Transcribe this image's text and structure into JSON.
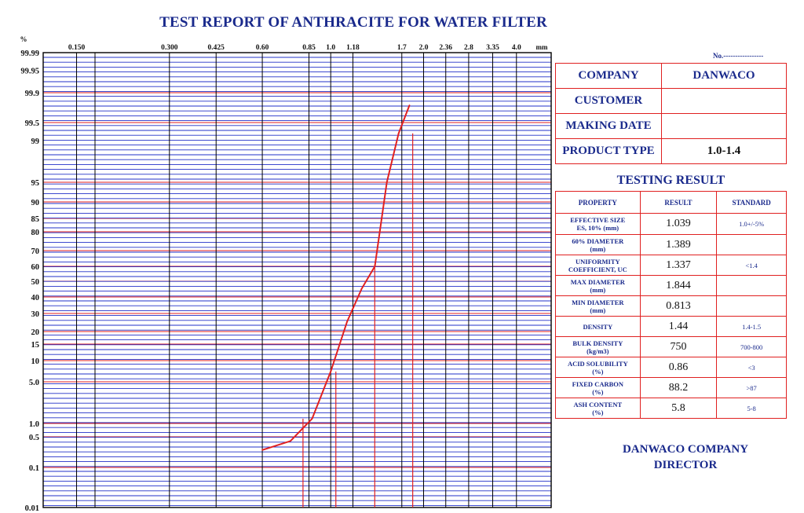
{
  "title": "TEST REPORT OF ANTHRACITE FOR WATER FILTER",
  "report_no": "No.-----------------",
  "chart_data": {
    "type": "line",
    "title": "TEST REPORT OF ANTHRACITE FOR WATER FILTER",
    "x_unit": "mm",
    "y_unit": "%",
    "x_scale": "log",
    "y_scale": "probability",
    "x_tick_labels": [
      "0.150",
      "0.300",
      "0.425",
      "0.60",
      "0.85",
      "1.0",
      "1.18",
      "1.7",
      "2.0",
      "2.36",
      "2.8",
      "3.35",
      "4.0"
    ],
    "y_tick_labels": [
      "99.99",
      "99.95",
      "99.9",
      "99.5",
      "99",
      "95",
      "90",
      "85",
      "80",
      "70",
      "60",
      "50",
      "40",
      "30",
      "20",
      "15",
      "10",
      "5.0",
      "1.0",
      "0.5",
      "0.1",
      "0.01"
    ],
    "series": [
      {
        "x": [
          0.6,
          0.74,
          0.87,
          1.0,
          1.13,
          1.26,
          1.39,
          1.52,
          1.66,
          1.8
        ],
        "y": [
          0.25,
          0.4,
          1.2,
          7,
          25,
          45,
          60,
          95,
          99.2,
          99.8
        ]
      }
    ],
    "reference_lines": [
      {
        "x": 0.813,
        "y": 1.2
      },
      {
        "x": 1.039,
        "y": 7
      },
      {
        "x": 1.389,
        "y": 60
      },
      {
        "x": 1.844,
        "y": 99.2
      }
    ]
  },
  "info": {
    "rows": [
      {
        "label": "COMPANY",
        "value": "DANWACO"
      },
      {
        "label": "CUSTOMER",
        "value": ""
      },
      {
        "label": "MAKING DATE",
        "value": ""
      },
      {
        "label": "PRODUCT TYPE",
        "value": "1.0-1.4"
      }
    ]
  },
  "testing": {
    "title": "TESTING RESULT",
    "headers": [
      "PROPERTY",
      "RESULT",
      "STANDARD"
    ],
    "rows": [
      {
        "p1": "EFFECTIVE SIZE",
        "p2": "ES, 10% (mm)",
        "result": "1.039",
        "standard": "1.0+/-5%"
      },
      {
        "p1": "60% DIAMETER",
        "p2": "(mm)",
        "result": "1.389",
        "standard": ""
      },
      {
        "p1": "UNIFORMITY",
        "p2": "COEFFICIENT, UC",
        "result": "1.337",
        "standard": "<1.4"
      },
      {
        "p1": "MAX DIAMETER",
        "p2": "(mm)",
        "result": "1.844",
        "standard": ""
      },
      {
        "p1": "MIN DIAMETER",
        "p2": "(mm)",
        "result": "0.813",
        "standard": ""
      },
      {
        "p1": "DENSITY",
        "p2": "",
        "result": "1.44",
        "standard": "1.4-1.5"
      },
      {
        "p1": "BULK DENSITY",
        "p2": "(kg/m3)",
        "result": "750",
        "standard": "700-800"
      },
      {
        "p1": "ACID SOLUBILITY",
        "p2": "(%)",
        "result": "0.86",
        "standard": "<3"
      },
      {
        "p1": "FIXED CARBON",
        "p2": "(%)",
        "result": "88.2",
        "standard": ">87"
      },
      {
        "p1": "ASH CONTENT",
        "p2": "(%)",
        "result": "5.8",
        "standard": "5-8"
      }
    ]
  },
  "signature": {
    "line1": "DANWACO COMPANY",
    "line2": "DIRECTOR"
  },
  "colors": {
    "blue": "#1a2a8c",
    "grid_blue": "#2230c8",
    "red": "#e02020"
  }
}
